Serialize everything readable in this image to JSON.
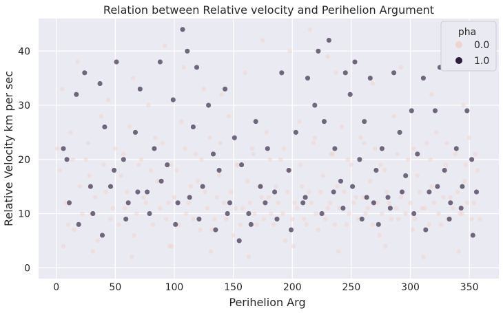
{
  "chart_data": {
    "type": "scatter",
    "title": "Relation between Relative velocity and Perihelion Argument",
    "xlabel": "Perihelion Arg",
    "ylabel": "Relative Velocity km per sec",
    "xlim": [
      -15,
      375
    ],
    "ylim": [
      -2,
      46
    ],
    "xticks": [
      0,
      50,
      100,
      150,
      200,
      250,
      300,
      350
    ],
    "yticks": [
      0,
      10,
      20,
      30,
      40
    ],
    "grid": true,
    "background": "#eaeaf2",
    "legend": {
      "title": "pha",
      "placement": "top-right",
      "entries": [
        {
          "label": "0.0",
          "color": "#f0d3cc"
        },
        {
          "label": "1.0",
          "color": "#2d1e3e"
        }
      ]
    },
    "series": [
      {
        "name": "0.0",
        "color": "#f0d3cc",
        "opacity": 0.55,
        "points": [
          [
            3,
            18
          ],
          [
            8,
            12
          ],
          [
            12,
            25
          ],
          [
            15,
            7
          ],
          [
            20,
            15
          ],
          [
            25,
            20
          ],
          [
            30,
            10
          ],
          [
            35,
            5
          ],
          [
            38,
            28
          ],
          [
            42,
            14
          ],
          [
            46,
            9
          ],
          [
            50,
            22
          ],
          [
            55,
            17
          ],
          [
            58,
            11
          ],
          [
            62,
            26
          ],
          [
            66,
            6
          ],
          [
            70,
            19
          ],
          [
            74,
            13
          ],
          [
            78,
            30
          ],
          [
            82,
            8
          ],
          [
            86,
            16
          ],
          [
            90,
            23
          ],
          [
            95,
            12
          ],
          [
            98,
            4
          ],
          [
            102,
            18
          ],
          [
            106,
            27
          ],
          [
            110,
            10
          ],
          [
            114,
            15
          ],
          [
            118,
            21
          ],
          [
            122,
            7
          ],
          [
            126,
            14
          ],
          [
            130,
            24
          ],
          [
            134,
            9
          ],
          [
            138,
            17
          ],
          [
            142,
            12
          ],
          [
            146,
            28
          ],
          [
            150,
            6
          ],
          [
            154,
            19
          ],
          [
            158,
            11
          ],
          [
            162,
            16
          ],
          [
            166,
            22
          ],
          [
            170,
            8
          ],
          [
            174,
            13
          ],
          [
            178,
            25
          ],
          [
            182,
            10
          ],
          [
            186,
            15
          ],
          [
            190,
            20
          ],
          [
            194,
            5
          ],
          [
            198,
            18
          ],
          [
            202,
            12
          ],
          [
            206,
            27
          ],
          [
            210,
            9
          ],
          [
            214,
            14
          ],
          [
            218,
            23
          ],
          [
            222,
            7
          ],
          [
            226,
            17
          ],
          [
            230,
            11
          ],
          [
            234,
            21
          ],
          [
            238,
            15
          ],
          [
            242,
            26
          ],
          [
            246,
            8
          ],
          [
            250,
            19
          ],
          [
            254,
            13
          ],
          [
            258,
            24
          ],
          [
            262,
            10
          ],
          [
            266,
            16
          ],
          [
            270,
            22
          ],
          [
            274,
            6
          ],
          [
            278,
            18
          ],
          [
            282,
            12
          ],
          [
            286,
            28
          ],
          [
            290,
            9
          ],
          [
            294,
            14
          ],
          [
            298,
            20
          ],
          [
            302,
            7
          ],
          [
            306,
            17
          ],
          [
            310,
            11
          ],
          [
            314,
            23
          ],
          [
            318,
            15
          ],
          [
            322,
            25
          ],
          [
            326,
            8
          ],
          [
            330,
            19
          ],
          [
            334,
            13
          ],
          [
            338,
            21
          ],
          [
            342,
            10
          ],
          [
            346,
            16
          ],
          [
            350,
            24
          ],
          [
            354,
            12
          ],
          [
            357,
            18
          ],
          [
            359,
            9
          ],
          [
            5,
            33
          ],
          [
            18,
            38
          ],
          [
            44,
            31
          ],
          [
            65,
            35
          ],
          [
            92,
            41
          ],
          [
            108,
            37
          ],
          [
            125,
            33
          ],
          [
            160,
            36
          ],
          [
            175,
            42
          ],
          [
            198,
            40
          ],
          [
            215,
            44
          ],
          [
            237,
            36
          ],
          [
            268,
            34
          ],
          [
            292,
            37
          ],
          [
            318,
            32
          ],
          [
            345,
            30
          ],
          [
            230,
            39
          ],
          [
            140,
            32
          ],
          [
            10,
            8
          ],
          [
            22,
            10
          ],
          [
            28,
            17
          ],
          [
            33,
            13
          ],
          [
            48,
            11
          ],
          [
            53,
            8
          ],
          [
            60,
            14
          ],
          [
            68,
            10
          ],
          [
            76,
            12
          ],
          [
            80,
            18
          ],
          [
            88,
            11
          ],
          [
            93,
            9
          ],
          [
            100,
            13
          ],
          [
            104,
            8
          ],
          [
            112,
            12
          ],
          [
            116,
            9
          ],
          [
            120,
            16
          ],
          [
            128,
            11
          ],
          [
            132,
            7
          ],
          [
            136,
            13
          ],
          [
            144,
            9
          ],
          [
            148,
            14
          ],
          [
            152,
            11
          ],
          [
            156,
            8
          ],
          [
            164,
            12
          ],
          [
            168,
            10
          ],
          [
            172,
            15
          ],
          [
            176,
            9
          ],
          [
            180,
            13
          ],
          [
            184,
            8
          ],
          [
            188,
            12
          ],
          [
            192,
            10
          ],
          [
            196,
            14
          ],
          [
            200,
            9
          ],
          [
            204,
            11
          ],
          [
            208,
            15
          ],
          [
            212,
            8
          ],
          [
            216,
            12
          ],
          [
            220,
            10
          ],
          [
            224,
            14
          ],
          [
            228,
            9
          ],
          [
            232,
            12
          ],
          [
            236,
            8
          ],
          [
            240,
            11
          ],
          [
            244,
            14
          ],
          [
            248,
            10
          ],
          [
            252,
            12
          ],
          [
            256,
            9
          ],
          [
            260,
            13
          ],
          [
            264,
            11
          ],
          [
            268,
            8
          ],
          [
            272,
            12
          ],
          [
            276,
            10
          ],
          [
            280,
            14
          ],
          [
            284,
            9
          ],
          [
            288,
            11
          ],
          [
            292,
            13
          ],
          [
            296,
            10
          ],
          [
            300,
            12
          ],
          [
            304,
            9
          ],
          [
            308,
            14
          ],
          [
            312,
            11
          ],
          [
            316,
            8
          ],
          [
            320,
            12
          ],
          [
            324,
            10
          ],
          [
            328,
            13
          ],
          [
            332,
            9
          ],
          [
            336,
            11
          ],
          [
            340,
            14
          ],
          [
            344,
            10
          ],
          [
            348,
            12
          ],
          [
            352,
            9
          ],
          [
            1,
            22
          ],
          [
            14,
            20
          ],
          [
            27,
            23
          ],
          [
            40,
            19
          ],
          [
            57,
            21
          ],
          [
            72,
            20
          ],
          [
            84,
            24
          ],
          [
            97,
            19
          ],
          [
            109,
            22
          ],
          [
            123,
            20
          ],
          [
            139,
            23
          ],
          [
            153,
            19
          ],
          [
            167,
            21
          ],
          [
            181,
            20
          ],
          [
            193,
            22
          ],
          [
            207,
            19
          ],
          [
            219,
            24
          ],
          [
            233,
            21
          ],
          [
            247,
            20
          ],
          [
            261,
            23
          ],
          [
            275,
            19
          ],
          [
            289,
            21
          ],
          [
            303,
            22
          ],
          [
            317,
            20
          ],
          [
            331,
            23
          ],
          [
            347,
            19
          ],
          [
            355,
            21
          ],
          [
            6,
            4
          ],
          [
            31,
            3
          ],
          [
            64,
            2
          ],
          [
            96,
            4
          ],
          [
            131,
            3
          ],
          [
            163,
            2
          ],
          [
            201,
            4
          ],
          [
            239,
            3
          ],
          [
            279,
            4
          ],
          [
            311,
            2
          ],
          [
            341,
            3
          ]
        ]
      },
      {
        "name": "1.0",
        "color": "#2d1e3e",
        "opacity": 0.65,
        "points": [
          [
            6,
            22
          ],
          [
            11,
            12
          ],
          [
            17,
            32
          ],
          [
            24,
            36
          ],
          [
            31,
            10
          ],
          [
            37,
            34
          ],
          [
            41,
            26
          ],
          [
            46,
            15
          ],
          [
            51,
            38
          ],
          [
            57,
            20
          ],
          [
            61,
            12
          ],
          [
            67,
            25
          ],
          [
            71,
            33
          ],
          [
            77,
            14
          ],
          [
            83,
            22
          ],
          [
            88,
            38
          ],
          [
            94,
            19
          ],
          [
            99,
            31
          ],
          [
            103,
            12
          ],
          [
            107,
            44
          ],
          [
            111,
            40
          ],
          [
            116,
            26
          ],
          [
            119,
            37
          ],
          [
            124,
            15
          ],
          [
            129,
            30
          ],
          [
            133,
            21
          ],
          [
            138,
            18
          ],
          [
            143,
            33
          ],
          [
            147,
            12
          ],
          [
            151,
            24
          ],
          [
            157,
            19
          ],
          [
            163,
            10
          ],
          [
            169,
            27
          ],
          [
            173,
            15
          ],
          [
            179,
            22
          ],
          [
            185,
            14
          ],
          [
            191,
            36
          ],
          [
            197,
            18
          ],
          [
            203,
            25
          ],
          [
            209,
            12
          ],
          [
            213,
            35
          ],
          [
            219,
            30
          ],
          [
            222,
            40
          ],
          [
            227,
            27
          ],
          [
            231,
            42
          ],
          [
            236,
            22
          ],
          [
            241,
            16
          ],
          [
            245,
            36
          ],
          [
            249,
            32
          ],
          [
            253,
            38
          ],
          [
            257,
            20
          ],
          [
            261,
            27
          ],
          [
            266,
            35
          ],
          [
            271,
            18
          ],
          [
            276,
            22
          ],
          [
            281,
            13
          ],
          [
            286,
            36
          ],
          [
            291,
            25
          ],
          [
            296,
            17
          ],
          [
            301,
            29
          ],
          [
            306,
            21
          ],
          [
            311,
            35
          ],
          [
            316,
            14
          ],
          [
            321,
            29
          ],
          [
            325,
            37
          ],
          [
            329,
            18
          ],
          [
            334,
            12
          ],
          [
            339,
            22
          ],
          [
            344,
            15
          ],
          [
            348,
            29
          ],
          [
            352,
            20
          ],
          [
            356,
            14
          ],
          [
            9,
            20
          ],
          [
            19,
            8
          ],
          [
            29,
            15
          ],
          [
            39,
            6
          ],
          [
            49,
            18
          ],
          [
            59,
            9
          ],
          [
            69,
            14
          ],
          [
            79,
            10
          ],
          [
            89,
            16
          ],
          [
            101,
            8
          ],
          [
            113,
            13
          ],
          [
            121,
            9
          ],
          [
            135,
            7
          ],
          [
            145,
            10
          ],
          [
            155,
            5
          ],
          [
            165,
            8
          ],
          [
            177,
            12
          ],
          [
            187,
            9
          ],
          [
            199,
            7
          ],
          [
            211,
            13
          ],
          [
            225,
            10
          ],
          [
            235,
            14
          ],
          [
            243,
            11
          ],
          [
            251,
            15
          ],
          [
            259,
            9
          ],
          [
            263,
            13
          ],
          [
            269,
            12
          ],
          [
            273,
            8
          ],
          [
            283,
            11
          ],
          [
            293,
            14
          ],
          [
            303,
            10
          ],
          [
            313,
            7
          ],
          [
            323,
            15
          ],
          [
            333,
            9
          ],
          [
            343,
            11
          ],
          [
            353,
            6
          ]
        ]
      }
    ]
  }
}
